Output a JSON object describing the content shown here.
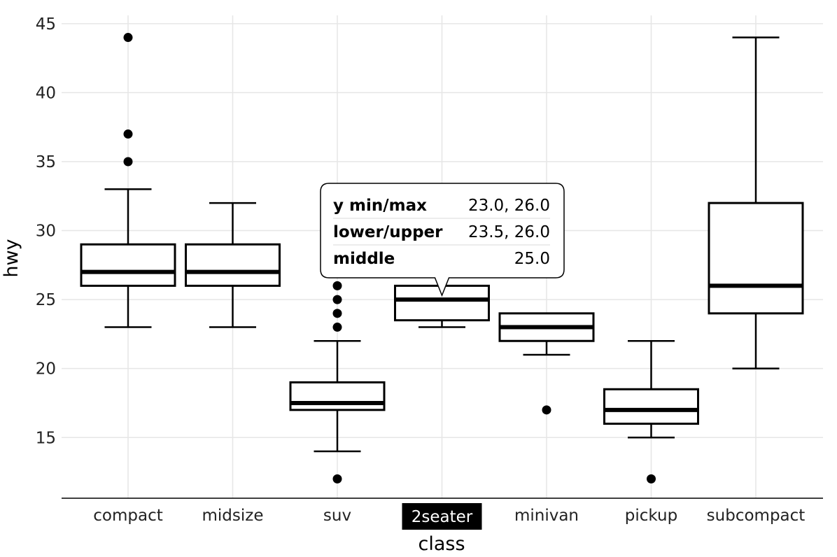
{
  "chart_data": {
    "type": "boxplot",
    "xlabel": "class",
    "ylabel": "hwy",
    "ylim": [
      10.6,
      45.6
    ],
    "yticks": [
      15,
      20,
      25,
      30,
      35,
      40,
      45
    ],
    "grid": true,
    "categories": [
      "compact",
      "midsize",
      "suv",
      "2seater",
      "minivan",
      "pickup",
      "subcompact"
    ],
    "boxes": [
      {
        "category": "compact",
        "whisker_low": 23,
        "q1": 26,
        "median": 27,
        "q3": 29,
        "whisker_high": 33,
        "outliers": [
          35,
          37,
          44
        ]
      },
      {
        "category": "midsize",
        "whisker_low": 23,
        "q1": 26,
        "median": 27,
        "q3": 29,
        "whisker_high": 32,
        "outliers": []
      },
      {
        "category": "suv",
        "whisker_low": 14,
        "q1": 17,
        "median": 17.5,
        "q3": 19,
        "whisker_high": 22,
        "outliers": [
          12,
          23,
          24,
          25,
          26
        ]
      },
      {
        "category": "2seater",
        "whisker_low": 23,
        "q1": 23.5,
        "median": 25,
        "q3": 26,
        "whisker_high": 26,
        "outliers": []
      },
      {
        "category": "minivan",
        "whisker_low": 21,
        "q1": 22,
        "median": 23,
        "q3": 24,
        "whisker_high": 24,
        "outliers": [
          17
        ]
      },
      {
        "category": "pickup",
        "whisker_low": 15,
        "q1": 16,
        "median": 17,
        "q3": 18.5,
        "whisker_high": 22,
        "outliers": [
          12
        ]
      },
      {
        "category": "subcompact",
        "whisker_low": 20,
        "q1": 24,
        "median": 26,
        "q3": 32,
        "whisker_high": 44,
        "outliers": []
      }
    ],
    "highlighted_category": "2seater",
    "tooltip": {
      "target": "2seater",
      "rows": [
        {
          "label": "y min/max",
          "value": "23.0, 26.0"
        },
        {
          "label": "lower/upper",
          "value": "23.5, 26.0"
        },
        {
          "label": "middle",
          "value": "25.0"
        }
      ]
    }
  }
}
